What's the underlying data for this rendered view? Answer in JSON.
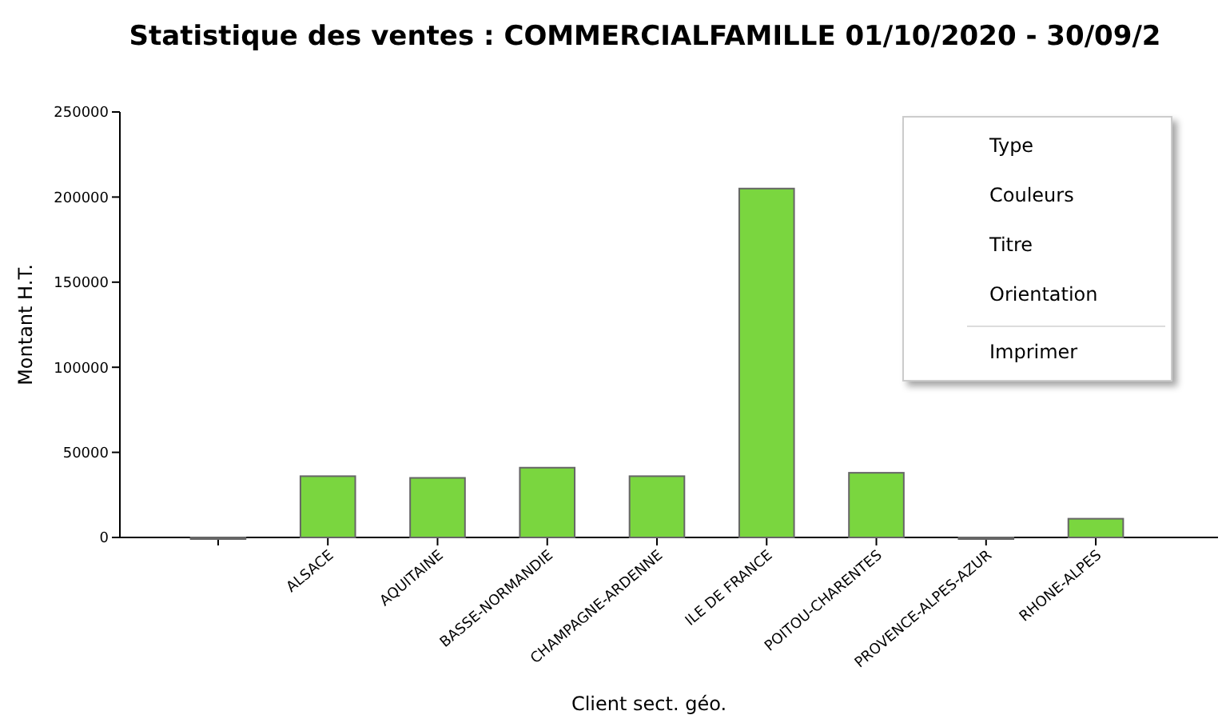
{
  "chart_data": {
    "type": "bar",
    "title": "Statistique des ventes  : COMMERCIALFAMILLE 01/10/2020 - 30/09/2",
    "xlabel": "Client sect. géo.",
    "ylabel": "Montant H.T.",
    "categories": [
      null,
      "ALSACE",
      "AQUITAINE",
      "BASSE-NORMANDIE",
      "CHAMPAGNE-ARDENNE",
      "ILE DE FRANCE",
      "POITOU-CHARENTES",
      "PROVENCE-ALPES-AZUR",
      "RHONE-ALPES"
    ],
    "values": [
      0,
      36000,
      35000,
      41000,
      36000,
      205000,
      38000,
      0,
      11000
    ],
    "color": "#7ad63f",
    "ylim": [
      0,
      250000
    ],
    "yticks": [
      0,
      50000,
      100000,
      150000,
      200000,
      250000
    ],
    "annotations": [
      "Type",
      "Couleurs",
      "Titre",
      "Orientation",
      "Imprimer"
    ]
  }
}
